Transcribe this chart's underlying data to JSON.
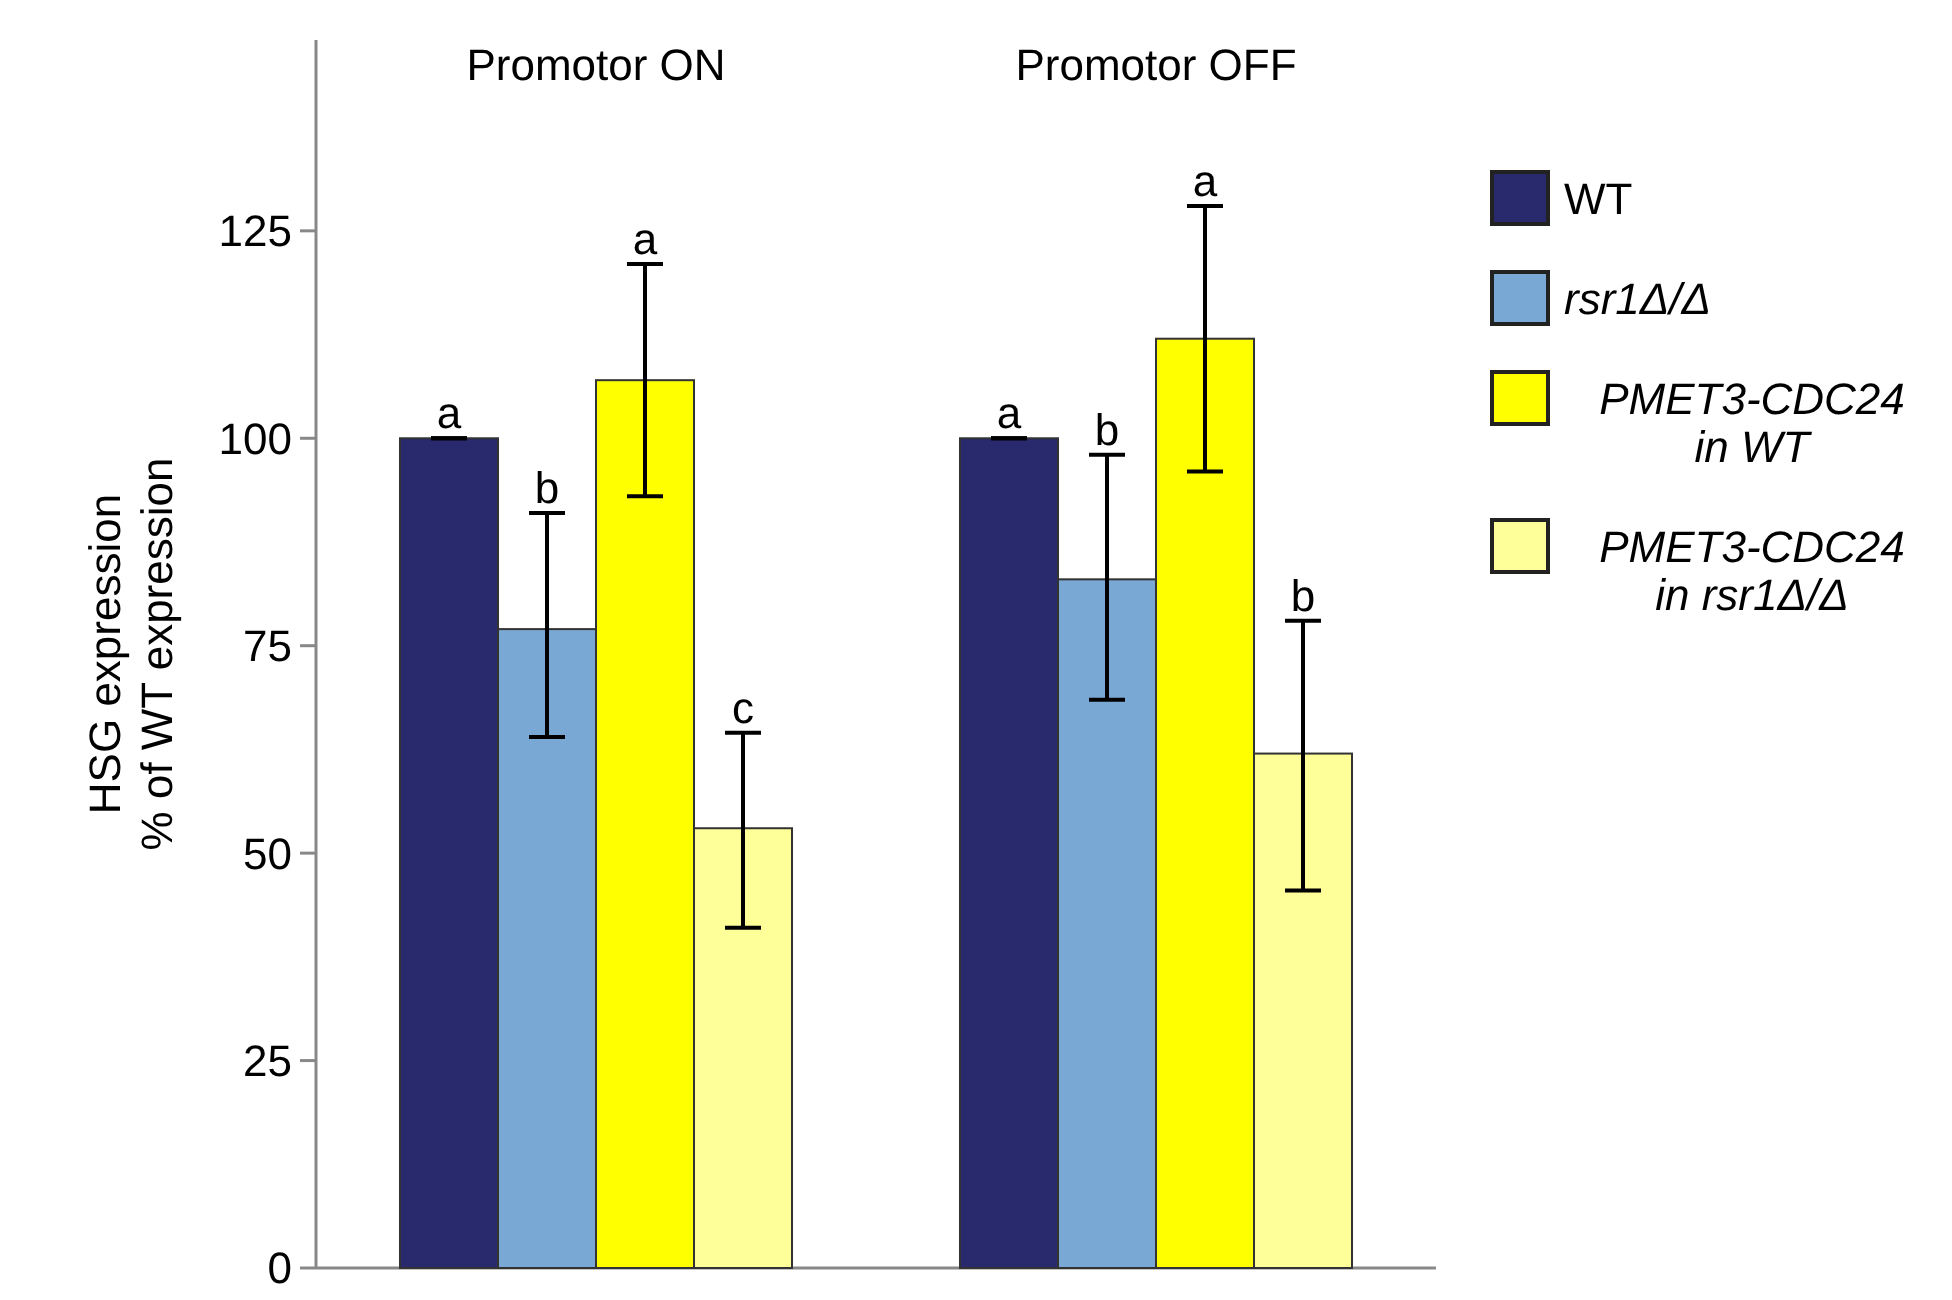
{
  "chart_data": {
    "type": "bar",
    "ylabel": "HSG expression\n% of WT expression",
    "categories": [
      "Promotor ON",
      "Promotor OFF"
    ],
    "ylim": [
      0,
      148
    ],
    "yticks": [
      0,
      25,
      50,
      75,
      100,
      125
    ],
    "grid": false,
    "legend": "right",
    "series": [
      {
        "name": "WT",
        "color": "#29296e",
        "values": [
          100,
          100
        ],
        "errors": [
          0,
          0
        ],
        "value_labels": [
          "a",
          "a"
        ]
      },
      {
        "name": "rsr1Δ/Δ",
        "color": "#7aa8d4",
        "values": [
          77,
          83
        ],
        "errors": [
          [
            64,
            91
          ],
          [
            68.5,
            98
          ]
        ],
        "value_labels": [
          "b",
          "b"
        ]
      },
      {
        "name": "PMET3-CDC24 in WT",
        "color": "#ffff00",
        "values": [
          107,
          112
        ],
        "errors": [
          [
            93,
            121
          ],
          [
            96,
            128
          ]
        ],
        "value_labels": [
          "a",
          "a"
        ]
      },
      {
        "name": "PMET3-CDC24 in rsr1Δ/Δ",
        "color": "#ffff99",
        "values": [
          53,
          62
        ],
        "errors": [
          [
            41,
            64.5
          ],
          [
            45.5,
            78
          ]
        ],
        "value_labels": [
          "c",
          "b"
        ]
      }
    ]
  }
}
